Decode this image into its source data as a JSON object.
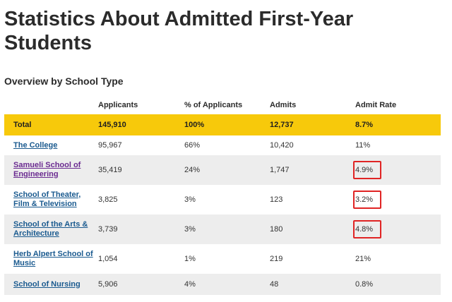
{
  "page": {
    "title": "Statistics About Admitted First-Year Students",
    "section_title": "Overview by School Type"
  },
  "table": {
    "headers": [
      "",
      "Applicants",
      "% of Applicants",
      "Admits",
      "Admit Rate"
    ],
    "total": {
      "label": "Total",
      "applicants": "145,910",
      "pct_applicants": "100%",
      "admits": "12,737",
      "admit_rate": "8.7%"
    },
    "rows": [
      {
        "school": "The College",
        "applicants": "95,967",
        "pct_applicants": "66%",
        "admits": "10,420",
        "admit_rate": "11%",
        "highlighted": false,
        "visited_link": false
      },
      {
        "school": "Samueli School of Engineering",
        "applicants": "35,419",
        "pct_applicants": "24%",
        "admits": "1,747",
        "admit_rate": "4.9%",
        "highlighted": true,
        "visited_link": true
      },
      {
        "school": "School of Theater, Film & Television",
        "applicants": "3,825",
        "pct_applicants": "3%",
        "admits": "123",
        "admit_rate": "3.2%",
        "highlighted": true,
        "visited_link": false
      },
      {
        "school": "School of the Arts & Architecture",
        "applicants": "3,739",
        "pct_applicants": "3%",
        "admits": "180",
        "admit_rate": "4.8%",
        "highlighted": true,
        "visited_link": false
      },
      {
        "school": "Herb Alpert School of Music",
        "applicants": "1,054",
        "pct_applicants": "1%",
        "admits": "219",
        "admit_rate": "21%",
        "highlighted": false,
        "visited_link": false
      },
      {
        "school": "School of Nursing",
        "applicants": "5,906",
        "pct_applicants": "4%",
        "admits": "48",
        "admit_rate": "0.8%",
        "highlighted": false,
        "visited_link": false
      }
    ]
  },
  "colors": {
    "total_row_bg": "#f7c90b",
    "alt_row_bg": "#ededed",
    "link": "#1a5a8f",
    "visited_link": "#6a2a90",
    "highlight_box": "#e02424"
  }
}
